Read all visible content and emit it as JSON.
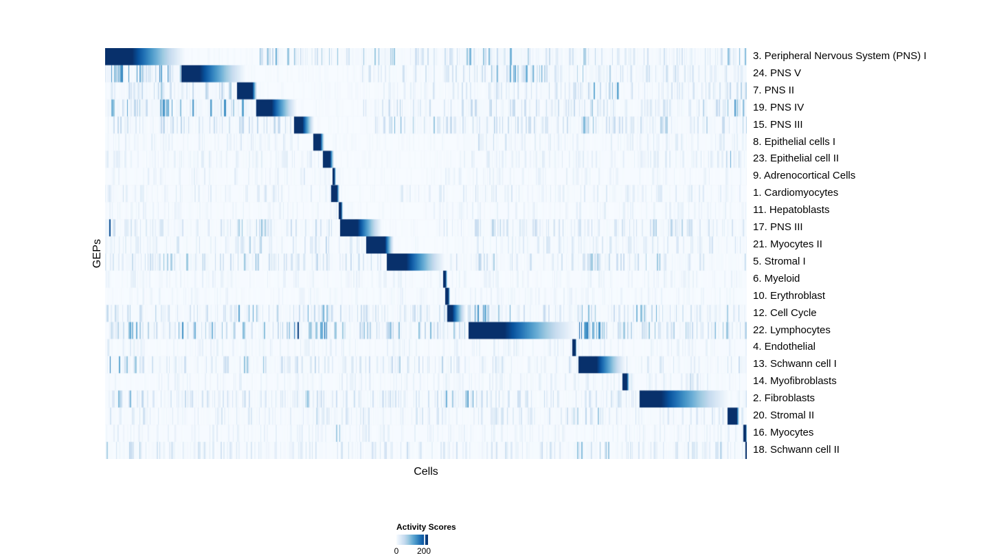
{
  "chart_data": {
    "type": "heatmap",
    "title": "",
    "xlabel": "Cells",
    "ylabel": "GEPs",
    "x_tick_labels": [],
    "legend_position": "bottom",
    "value_scale": {
      "title": "Activity Scores",
      "tick_values": [
        0,
        200
      ],
      "tick_labels": [
        "0",
        "200"
      ],
      "bar_max_value": 230,
      "tick_200_fraction": 0.87,
      "colormap": "Blues"
    },
    "colors": {
      "scale_stops": [
        "#f7fbff",
        "#deebf7",
        "#c6dbef",
        "#9ecae1",
        "#6baed6",
        "#4292c6",
        "#2171b5",
        "#08519c",
        "#08306b"
      ],
      "background": "#ffffff",
      "text": "#000000"
    },
    "description": "Each row is a gene expression program (GEP); cells (columns) are ordered so each GEP's high-activity cells form a dark diagonal block (activity ~200) fading rightward, over a sparse striped low-activity background.",
    "rows": [
      {
        "label": "3. Peripheral Nervous System (PNS) I",
        "block": [
          0.0,
          0.042,
          0.125
        ],
        "base": 0.22,
        "quiet": [
          [
            0.125,
            0.24
          ]
        ],
        "clusters": [
          [
            0.24,
            0.3,
            0.45
          ],
          [
            0.33,
            0.45,
            0.4
          ],
          [
            0.55,
            0.66,
            0.5
          ],
          [
            0.73,
            0.78,
            0.35
          ],
          [
            0.97,
            1.0,
            0.45
          ]
        ]
      },
      {
        "label": "24. PNS V",
        "block": [
          0.119,
          0.147,
          0.219
        ],
        "base": 0.25,
        "quiet": [
          [
            0.219,
            0.4
          ]
        ],
        "clusters": [
          [
            0.0,
            0.12,
            0.65
          ],
          [
            0.6,
            0.68,
            0.55
          ],
          [
            0.73,
            0.8,
            0.35
          ],
          [
            0.97,
            1.0,
            0.45
          ]
        ]
      },
      {
        "label": "7. PNS II",
        "block": [
          0.206,
          0.229,
          0.237
        ],
        "base": 0.2,
        "quiet": [
          [
            0.237,
            0.42
          ]
        ],
        "clusters": [
          [
            0.0,
            0.2,
            0.3
          ],
          [
            0.74,
            0.8,
            0.6
          ],
          [
            0.97,
            1.0,
            0.3
          ]
        ]
      },
      {
        "label": "19. PNS IV",
        "block": [
          0.236,
          0.259,
          0.299
        ],
        "base": 0.25,
        "quiet": [
          [
            0.299,
            0.4
          ]
        ],
        "clusters": [
          [
            0.0,
            0.235,
            0.6
          ],
          [
            0.42,
            0.55,
            0.3
          ],
          [
            0.73,
            0.78,
            0.35
          ],
          [
            0.97,
            1.0,
            0.5
          ]
        ]
      },
      {
        "label": "15. PNS III",
        "block": [
          0.294,
          0.307,
          0.326
        ],
        "base": 0.25,
        "quiet": [
          [
            0.326,
            0.42
          ]
        ],
        "clusters": [
          [
            0.0,
            0.29,
            0.28
          ],
          [
            0.44,
            0.55,
            0.4
          ],
          [
            0.57,
            0.63,
            0.35
          ],
          [
            0.735,
            0.765,
            0.45
          ],
          [
            0.86,
            1.0,
            0.3
          ]
        ]
      },
      {
        "label": "8. Epithelial cells I",
        "block": [
          0.324,
          0.335,
          0.342
        ],
        "base": 0.12,
        "quiet": [
          [
            0.342,
            0.55
          ]
        ],
        "clusters": [
          [
            0.56,
            0.63,
            0.2
          ]
        ]
      },
      {
        "label": "23. Epithelial cell II",
        "block": [
          0.339,
          0.35,
          0.356
        ],
        "base": 0.12,
        "quiet": [
          [
            0.356,
            0.55
          ]
        ],
        "clusters": [
          [
            0.965,
            0.99,
            0.5
          ]
        ]
      },
      {
        "label": "9. Adrenocortical Cells",
        "block": [
          0.354,
          0.357,
          0.36
        ],
        "base": 0.09,
        "quiet": [
          [
            0.36,
            0.5
          ]
        ],
        "clusters": [
          [
            0.3,
            0.35,
            0.18
          ]
        ]
      },
      {
        "label": "1. Cardiomyocytes",
        "block": [
          0.352,
          0.361,
          0.365
        ],
        "base": 0.14,
        "quiet": [
          [
            0.365,
            0.45
          ]
        ],
        "clusters": [
          [
            0.0,
            0.05,
            0.2
          ],
          [
            0.56,
            0.62,
            0.2
          ]
        ]
      },
      {
        "label": "11. Hepatoblasts",
        "block": [
          0.364,
          0.367,
          0.37
        ],
        "base": 0.09,
        "quiet": [
          [
            0.37,
            0.5
          ]
        ],
        "clusters": []
      },
      {
        "label": "17. PNS III",
        "block": [
          0.366,
          0.393,
          0.432
        ],
        "base": 0.22,
        "quiet": [
          [
            0.432,
            0.52
          ]
        ],
        "clusters": [
          [
            0.0,
            0.008,
            0.9
          ],
          [
            0.2,
            0.26,
            0.4
          ],
          [
            0.3,
            0.36,
            0.3
          ],
          [
            0.57,
            0.62,
            0.3
          ],
          [
            0.85,
            0.9,
            0.3
          ]
        ]
      },
      {
        "label": "21. Myocytes II",
        "block": [
          0.407,
          0.436,
          0.45
        ],
        "base": 0.16,
        "quiet": [
          [
            0.45,
            0.55
          ]
        ],
        "clusters": [
          [
            0.0,
            0.006,
            0.7
          ],
          [
            0.21,
            0.25,
            0.4
          ],
          [
            0.32,
            0.35,
            0.3
          ],
          [
            0.993,
            1.0,
            0.85
          ]
        ]
      },
      {
        "label": "5. Stromal I",
        "block": [
          0.439,
          0.469,
          0.53
        ],
        "base": 0.25,
        "quiet": [],
        "clusters": [
          [
            0.0,
            0.05,
            0.45
          ],
          [
            0.09,
            0.14,
            0.4
          ],
          [
            0.21,
            0.24,
            0.4
          ],
          [
            0.55,
            0.62,
            0.4
          ],
          [
            0.735,
            0.785,
            0.45
          ],
          [
            0.83,
            0.87,
            0.4
          ]
        ]
      },
      {
        "label": "6. Myeloid",
        "block": [
          0.527,
          0.53,
          0.533
        ],
        "base": 0.08,
        "quiet": [],
        "clusters": []
      },
      {
        "label": "10. Erythroblast",
        "block": [
          0.53,
          0.534,
          0.537
        ],
        "base": 0.07,
        "quiet": [],
        "clusters": []
      },
      {
        "label": "12. Cell Cycle",
        "block": [
          0.533,
          0.541,
          0.562
        ],
        "base": 0.25,
        "quiet": [],
        "clusters": [
          [
            0.205,
            0.245,
            0.5
          ],
          [
            0.295,
            0.35,
            0.5
          ],
          [
            0.566,
            0.632,
            0.75
          ],
          [
            0.727,
            0.773,
            0.45
          ],
          [
            0.82,
            0.88,
            0.45
          ],
          [
            0.965,
            0.995,
            0.4
          ]
        ]
      },
      {
        "label": "22. Lymphocytes",
        "block": [
          0.566,
          0.622,
          0.734
        ],
        "base": 0.4,
        "quiet": [],
        "clusters": [
          [
            0.0,
            0.06,
            0.55
          ],
          [
            0.09,
            0.16,
            0.55
          ],
          [
            0.285,
            0.31,
            0.85
          ],
          [
            0.325,
            0.35,
            0.65
          ],
          [
            0.44,
            0.49,
            0.5
          ],
          [
            0.735,
            0.775,
            0.75
          ],
          [
            0.97,
            1.0,
            0.5
          ]
        ]
      },
      {
        "label": "4. Endothelial",
        "block": [
          0.728,
          0.732,
          0.735
        ],
        "base": 0.1,
        "quiet": [],
        "clusters": [
          [
            0.0,
            0.05,
            0.18
          ]
        ]
      },
      {
        "label": "13. Schwann cell I",
        "block": [
          0.738,
          0.766,
          0.812
        ],
        "base": 0.22,
        "quiet": [],
        "clusters": [
          [
            0.005,
            0.05,
            0.55
          ],
          [
            0.21,
            0.25,
            0.45
          ],
          [
            0.42,
            0.47,
            0.3
          ],
          [
            0.52,
            0.56,
            0.35
          ],
          [
            0.992,
            1.0,
            0.85
          ]
        ]
      },
      {
        "label": "14. Myofibroblasts",
        "block": [
          0.806,
          0.813,
          0.817
        ],
        "base": 0.1,
        "quiet": [],
        "clusters": [
          [
            0.91,
            0.93,
            0.25
          ]
        ]
      },
      {
        "label": "2. Fibroblasts",
        "block": [
          0.833,
          0.866,
          0.973
        ],
        "base": 0.22,
        "quiet": [],
        "clusters": [
          [
            0.01,
            0.04,
            0.45
          ],
          [
            0.3,
            0.315,
            0.5
          ],
          [
            0.53,
            0.58,
            0.55
          ],
          [
            0.993,
            1.0,
            0.65
          ]
        ]
      },
      {
        "label": "20. Stromal II",
        "block": [
          0.97,
          0.984,
          0.988
        ],
        "base": 0.18,
        "quiet": [],
        "clusters": [
          [
            0.3,
            0.33,
            0.28
          ],
          [
            0.73,
            0.78,
            0.4
          ]
        ]
      },
      {
        "label": "16. Myocytes",
        "block": [
          0.995,
          0.998,
          1.0
        ],
        "base": 0.1,
        "quiet": [],
        "clusters": [
          [
            0.355,
            0.37,
            0.45
          ],
          [
            0.405,
            0.42,
            0.3
          ],
          [
            0.91,
            0.925,
            0.35
          ]
        ]
      },
      {
        "label": "18. Schwann cell II",
        "block": [
          0.998,
          1.0,
          1.0
        ],
        "base": 0.2,
        "quiet": [],
        "clusters": [
          [
            0.0,
            0.1,
            0.3
          ],
          [
            0.73,
            0.79,
            0.45
          ],
          [
            0.955,
            0.97,
            0.35
          ]
        ]
      }
    ]
  }
}
